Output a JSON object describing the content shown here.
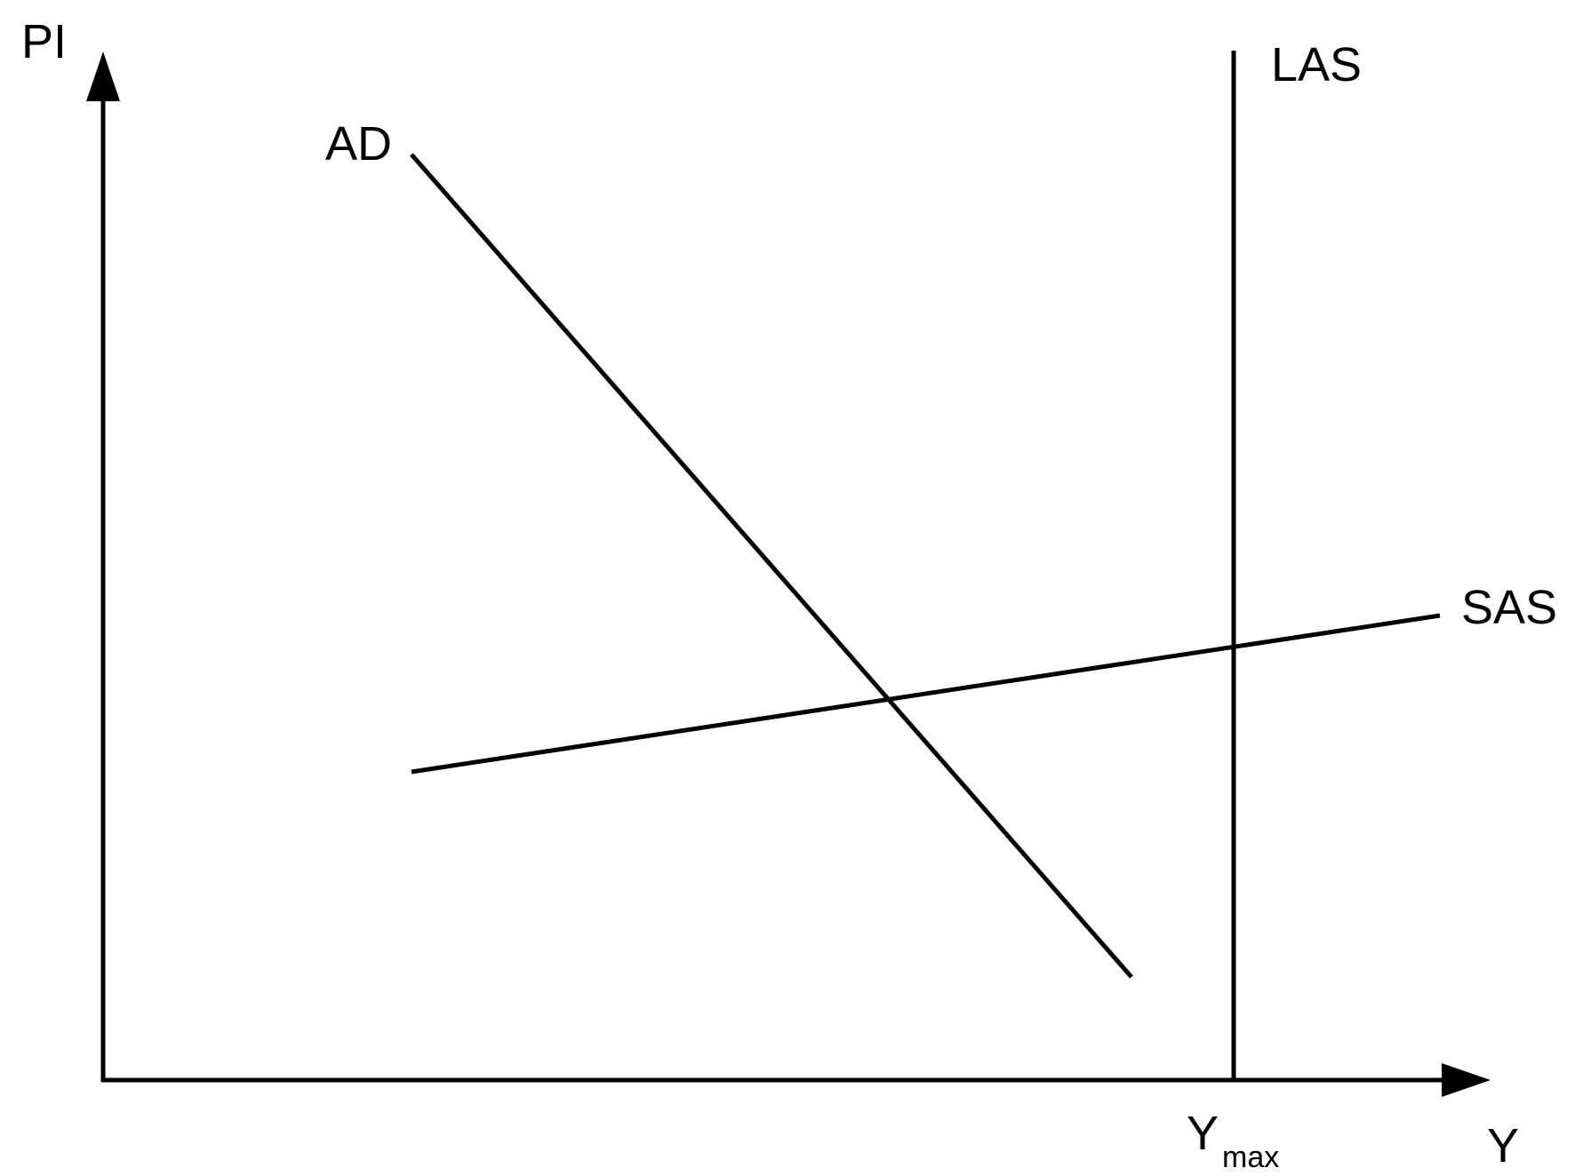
{
  "axes": {
    "y_label": "PI",
    "x_label": "Y"
  },
  "curves": {
    "ad": {
      "label": "AD"
    },
    "sas": {
      "label": "SAS"
    },
    "las": {
      "label": "LAS"
    }
  },
  "markers": {
    "ymax": {
      "base": "Y",
      "subscript": "max"
    }
  },
  "colors": {
    "stroke": "#000000",
    "background": "#ffffff"
  }
}
